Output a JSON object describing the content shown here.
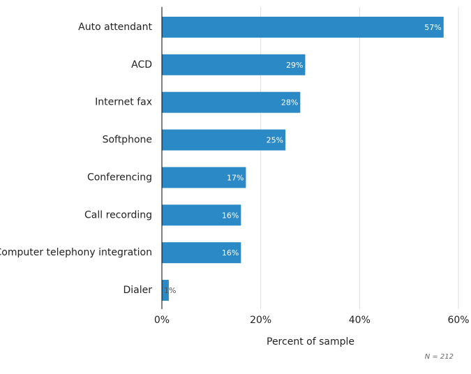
{
  "chart_data": {
    "type": "bar",
    "orientation": "horizontal",
    "categories": [
      "Auto attendant",
      "ACD",
      "Internet fax",
      "Softphone",
      "Conferencing",
      "Call recording",
      "Computer telephony integration",
      "Dialer"
    ],
    "values": [
      57,
      29,
      28,
      25,
      17,
      16,
      16,
      1.4
    ],
    "value_labels": [
      "57%",
      "29%",
      "28%",
      "25%",
      "17%",
      "16%",
      "16%",
      "1%"
    ],
    "color": "#2b8ac6",
    "xlim": [
      0,
      60
    ],
    "xticks": [
      {
        "value": 0,
        "label": "0%"
      },
      {
        "value": 20,
        "label": "20%"
      },
      {
        "value": 40,
        "label": "40%"
      },
      {
        "value": 60,
        "label": "60%"
      }
    ],
    "x_label": "Percent of sample",
    "note": "N = 212",
    "grid": true
  }
}
